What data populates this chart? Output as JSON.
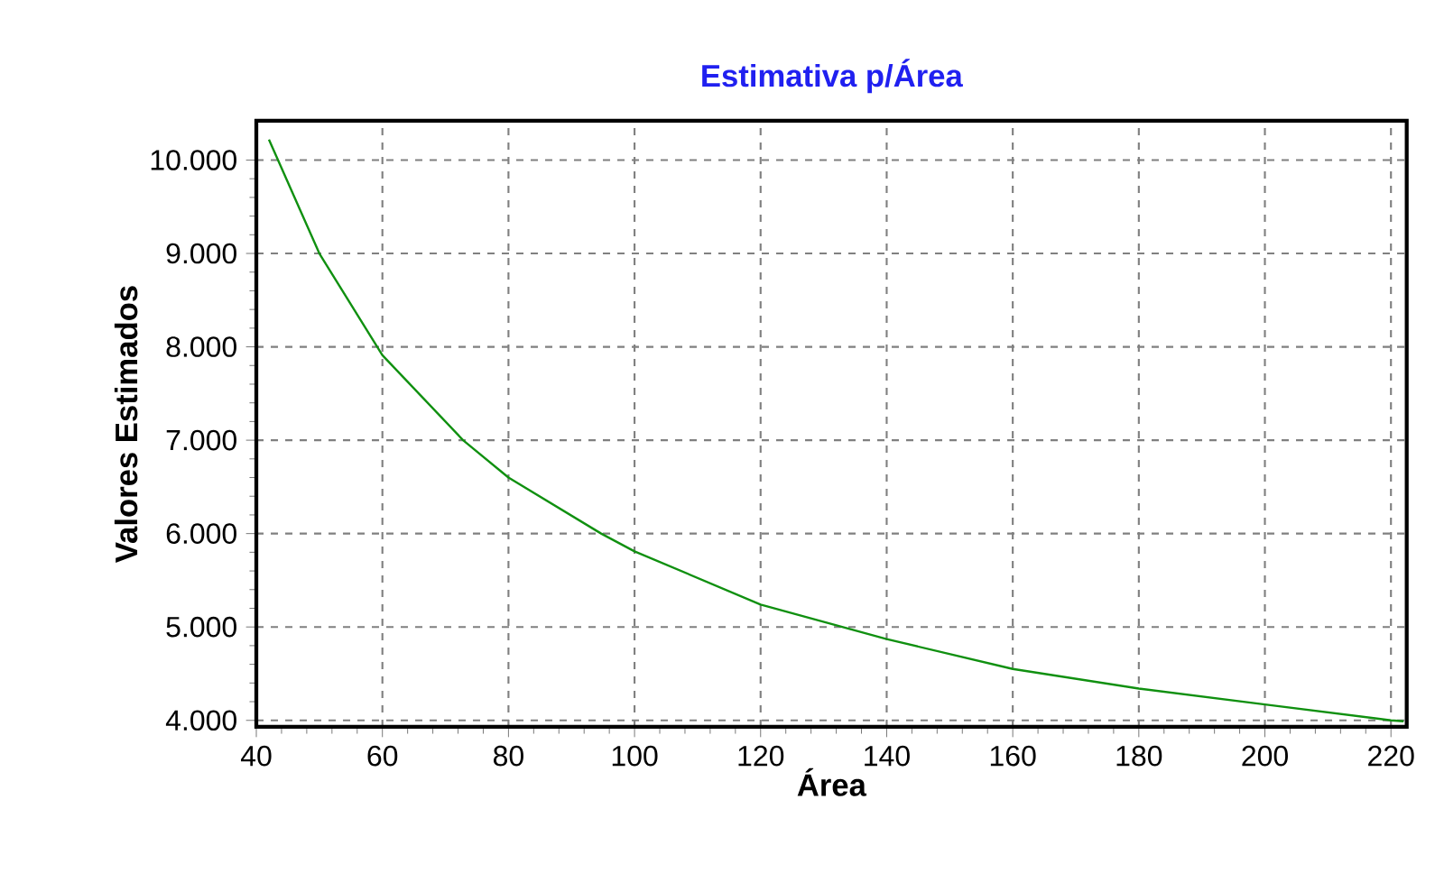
{
  "chart_data": {
    "type": "line",
    "title": "Estimativa p/Área",
    "xlabel": "Área",
    "ylabel": "Valores Estimados",
    "x": [
      42,
      50,
      60,
      72.8,
      80,
      94.7,
      100,
      120,
      140,
      160,
      180,
      200,
      220,
      222
    ],
    "series": [
      {
        "color": "#109010",
        "values": [
          10220,
          9000,
          7910,
          7000,
          6600,
          6000,
          5810,
          5240,
          4870,
          4550,
          4340,
          4170,
          4000,
          3990
        ]
      }
    ],
    "xlim": [
      40,
      222.5
    ],
    "ylim": [
      3930,
      10420
    ],
    "xticks": [
      40,
      60,
      80,
      100,
      120,
      140,
      160,
      180,
      200,
      220
    ],
    "yticks": [
      {
        "value": 4000,
        "label": "4.000"
      },
      {
        "value": 5000,
        "label": "5.000"
      },
      {
        "value": 6000,
        "label": "6.000"
      },
      {
        "value": 7000,
        "label": "7.000"
      },
      {
        "value": 8000,
        "label": "8.000"
      },
      {
        "value": 9000,
        "label": "9.000"
      },
      {
        "value": 10000,
        "label": "10.000"
      }
    ],
    "grid": true,
    "marker": "none",
    "line_style": "solid"
  }
}
